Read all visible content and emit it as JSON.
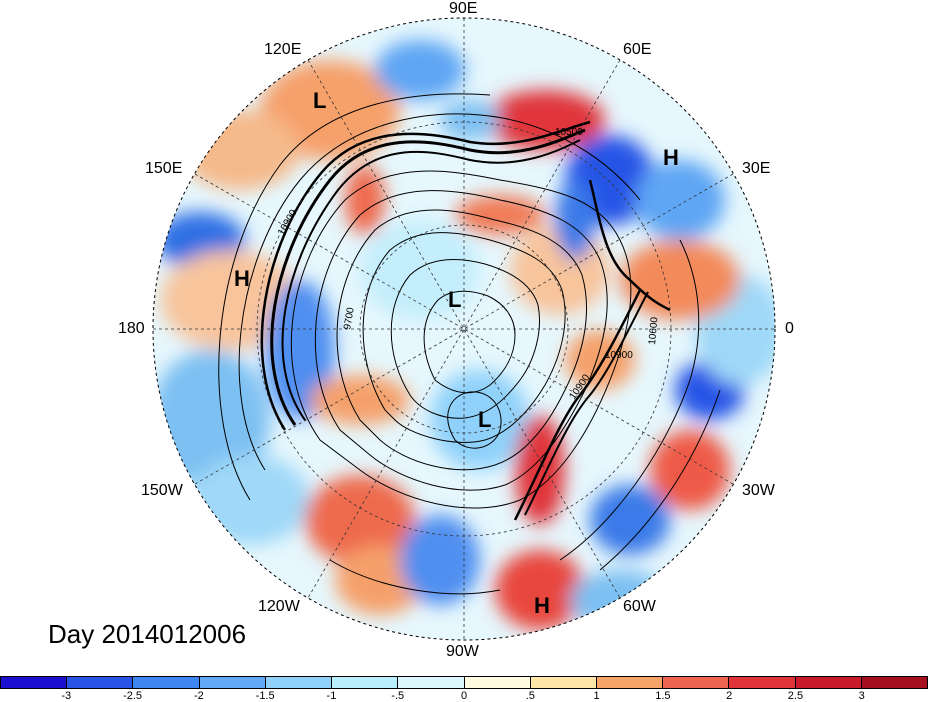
{
  "title": "Day 2014012006",
  "longitude_labels": [
    "90E",
    "60E",
    "30E",
    "0",
    "30W",
    "60W",
    "90W",
    "120W",
    "150W",
    "180",
    "150E",
    "120E"
  ],
  "pressure_centers": [
    "H",
    "H",
    "H",
    "L",
    "L",
    "L"
  ],
  "contour_labels": [
    "10900",
    "9700",
    "10900",
    "10900",
    "10600",
    "10500"
  ],
  "colorbar": {
    "ticks": [
      "-3",
      "-2.5",
      "-2",
      "-1.5",
      "-1",
      "-.5",
      "0",
      ".5",
      "1",
      "1.5",
      "2",
      "2.5",
      "3"
    ],
    "colors": [
      "#1c0fd0",
      "#2855e6",
      "#3f86f0",
      "#63aaf6",
      "#8fd1fa",
      "#b9eefc",
      "#dcf8fd",
      "#fffbe0",
      "#fde6a8",
      "#f7a468",
      "#ee6650",
      "#e0343a",
      "#c81a2a",
      "#a5101e"
    ]
  }
}
